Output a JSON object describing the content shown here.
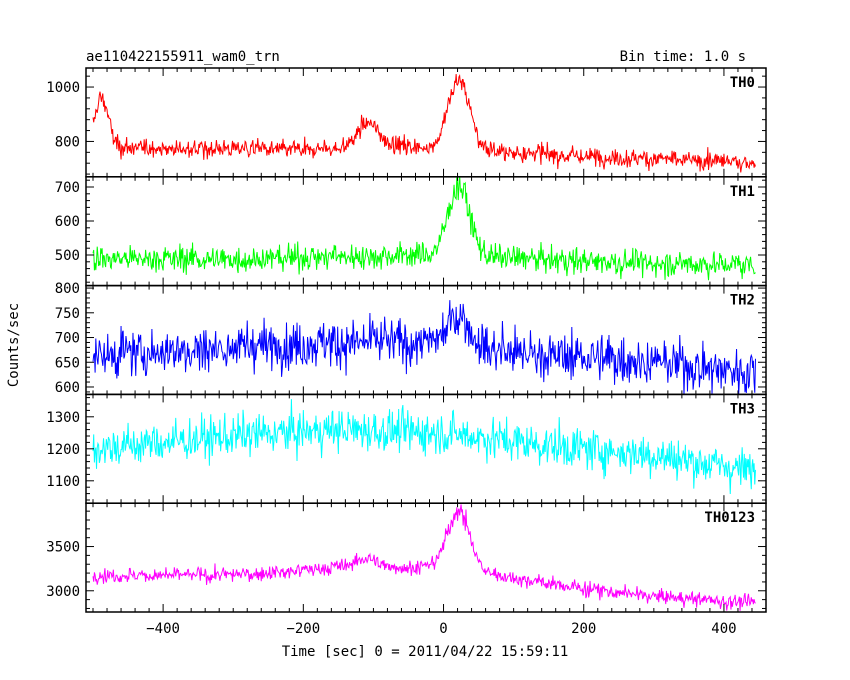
{
  "chart_data": {
    "type": "line",
    "title_left": "ae110422155911_wam0_trn",
    "title_right": "Bin time: 1.0 s",
    "xlabel": "Time [sec] 0 = 2011/04/22 15:59:11",
    "ylabel": "Counts/sec",
    "xlim": [
      -510,
      460
    ],
    "x_ticks": [
      -400,
      -200,
      0,
      200,
      400
    ],
    "x_range": [
      -500,
      445
    ],
    "panels": [
      {
        "name": "TH0",
        "color": "#ff0000",
        "ylim": [
          670,
          1070
        ],
        "y_ticks": [
          800,
          1000
        ],
        "baseline_points": [
          [
            -500,
            800
          ],
          [
            -470,
            780
          ],
          [
            -400,
            770
          ],
          [
            -300,
            770
          ],
          [
            -200,
            770
          ],
          [
            -150,
            775
          ],
          [
            -100,
            790
          ],
          [
            0,
            780
          ],
          [
            100,
            760
          ],
          [
            200,
            745
          ],
          [
            300,
            735
          ],
          [
            445,
            720
          ]
        ],
        "bumps": [
          {
            "center": -487,
            "height": 170,
            "width": 9
          },
          {
            "center": -108,
            "height": 80,
            "width": 14
          },
          {
            "center": 22,
            "height": 250,
            "width": 15
          }
        ],
        "noise": 28
      },
      {
        "name": "TH1",
        "color": "#00ff00",
        "ylim": [
          410,
          730
        ],
        "y_ticks": [
          500,
          600,
          700
        ],
        "baseline_points": [
          [
            -500,
            490
          ],
          [
            -300,
            488
          ],
          [
            -100,
            497
          ],
          [
            0,
            500
          ],
          [
            100,
            490
          ],
          [
            250,
            480
          ],
          [
            445,
            470
          ]
        ],
        "bumps": [
          {
            "center": 22,
            "height": 210,
            "width": 15
          }
        ],
        "noise": 32
      },
      {
        "name": "TH2",
        "color": "#0000ff",
        "ylim": [
          585,
          805
        ],
        "y_ticks": [
          600,
          650,
          700,
          750,
          800
        ],
        "baseline_points": [
          [
            -500,
            665
          ],
          [
            -300,
            680
          ],
          [
            -150,
            690
          ],
          [
            0,
            690
          ],
          [
            150,
            665
          ],
          [
            300,
            650
          ],
          [
            445,
            630
          ]
        ],
        "bumps": [
          {
            "center": 22,
            "height": 60,
            "width": 14
          }
        ],
        "noise": 40
      },
      {
        "name": "TH3",
        "color": "#00ffff",
        "ylim": [
          1030,
          1370
        ],
        "y_ticks": [
          1100,
          1200,
          1300
        ],
        "baseline_points": [
          [
            -500,
            1200
          ],
          [
            -300,
            1240
          ],
          [
            -150,
            1260
          ],
          [
            0,
            1250
          ],
          [
            150,
            1210
          ],
          [
            300,
            1180
          ],
          [
            445,
            1130
          ]
        ],
        "bumps": [],
        "noise": 55
      },
      {
        "name": "TH0123",
        "color": "#ff00ff",
        "ylim": [
          2760,
          3990
        ],
        "y_ticks": [
          3000,
          3500
        ],
        "baseline_points": [
          [
            -500,
            3170
          ],
          [
            -300,
            3180
          ],
          [
            -200,
            3230
          ],
          [
            -120,
            3300
          ],
          [
            -50,
            3260
          ],
          [
            0,
            3300
          ],
          [
            100,
            3140
          ],
          [
            200,
            3020
          ],
          [
            300,
            2940
          ],
          [
            445,
            2860
          ]
        ],
        "bumps": [
          {
            "center": 22,
            "height": 650,
            "width": 15
          },
          {
            "center": -108,
            "height": 60,
            "width": 14
          }
        ],
        "noise": 70
      }
    ]
  }
}
